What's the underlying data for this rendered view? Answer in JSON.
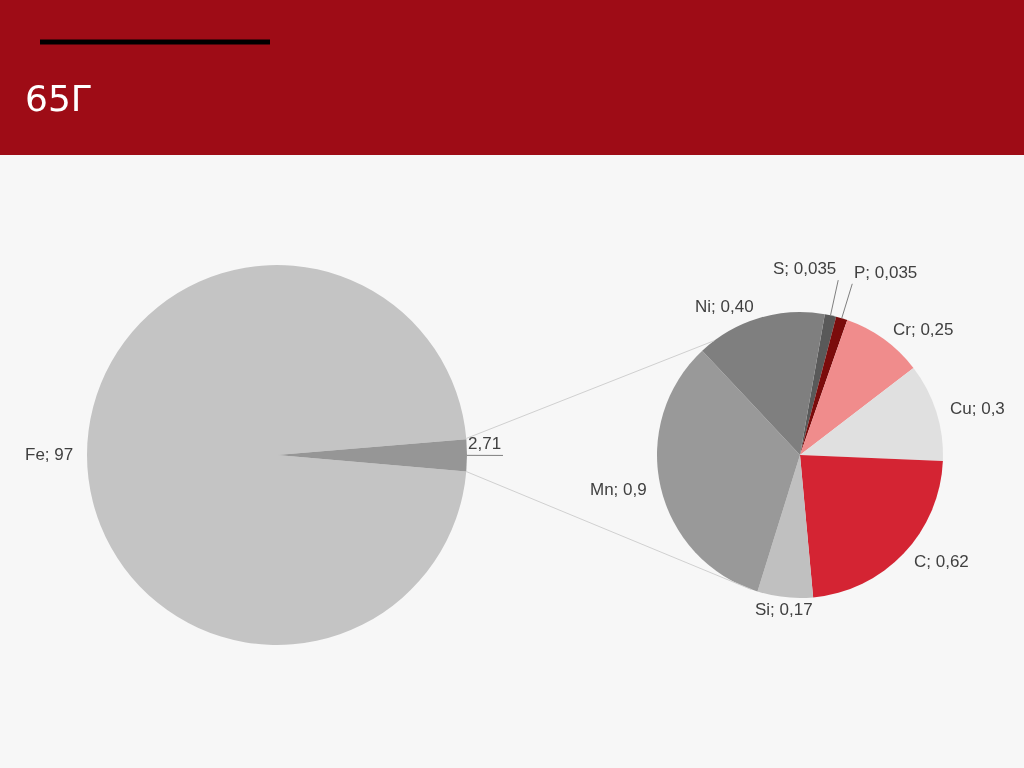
{
  "chart_data": [
    {
      "type": "pie",
      "title": "65Г",
      "categories": [
        "Fe",
        null
      ],
      "values": [
        97,
        2.71
      ],
      "value_labels": [
        "97",
        "2,71"
      ],
      "colors": [
        "#c4c4c4",
        "#969696"
      ]
    },
    {
      "type": "pie",
      "categories": [
        "S",
        "P",
        "Cr",
        "Cu",
        "C",
        "Si",
        "Mn",
        "Ni"
      ],
      "values": [
        0.035,
        0.035,
        0.25,
        0.3,
        0.62,
        0.17,
        0.9,
        0.4
      ],
      "value_labels": [
        "0,035",
        "0,035",
        "0,25",
        "0,3",
        "0,62",
        "0,17",
        "0,9",
        "0,40"
      ],
      "colors": [
        "#595959",
        "#7b0c0c",
        "#f08c8c",
        "#e0e0e0",
        "#d42433",
        "#c0c0c0",
        "#999999",
        "#7f7f7f"
      ]
    }
  ]
}
